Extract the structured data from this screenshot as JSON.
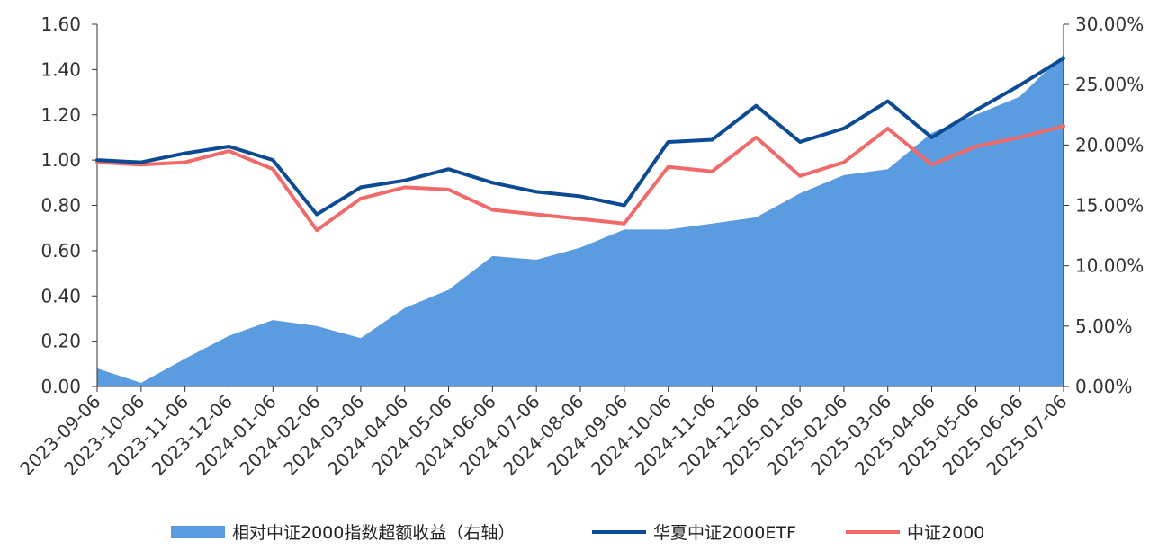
{
  "chart_data": {
    "type": "line",
    "title": "",
    "left_axis": {
      "ylim": [
        0,
        1.6
      ],
      "ticks": [
        0.0,
        0.2,
        0.4,
        0.6,
        0.8,
        1.0,
        1.2,
        1.4,
        1.6
      ],
      "tick_labels": [
        "0.00",
        "0.20",
        "0.40",
        "0.60",
        "0.80",
        "1.00",
        "1.20",
        "1.40",
        "1.60"
      ]
    },
    "right_axis": {
      "ylim": [
        0,
        30
      ],
      "ticks": [
        0,
        5,
        10,
        15,
        20,
        25,
        30
      ],
      "tick_labels": [
        "0.00%",
        "5.00%",
        "10.00%",
        "15.00%",
        "20.00%",
        "25.00%",
        "30.00%"
      ]
    },
    "x": [
      "2023-09-06",
      "2023-10-06",
      "2023-11-06",
      "2023-12-06",
      "2024-01-06",
      "2024-02-06",
      "2024-03-06",
      "2024-04-06",
      "2024-05-06",
      "2024-06-06",
      "2024-07-06",
      "2024-08-06",
      "2024-09-06",
      "2024-10-06",
      "2024-11-06",
      "2024-12-06",
      "2025-01-06",
      "2025-02-06",
      "2025-03-06",
      "2025-04-06",
      "2025-05-06",
      "2025-06-06",
      "2025-07-06"
    ],
    "x_tick_labels": [
      "2023-09-06",
      "2023-10-06",
      "2023-11-06",
      "2023-12-06",
      "2024-01-06",
      "2024-02-06",
      "2024-03-06",
      "2024-04-06",
      "2024-05-06",
      "2024-06-06",
      "2024-07-06",
      "2024-08-06",
      "2024-09-06",
      "2024-10-06",
      "2024-11-06",
      "2024-12-06",
      "2025-01-06",
      "2025-02-06",
      "2025-03-06",
      "2025-04-06",
      "2025-05-06",
      "2025-06-06",
      "2025-07-06"
    ],
    "series": [
      {
        "name": "相对中证2000指数超额收益（右轴）",
        "type": "area",
        "axis": "right",
        "color": "#5b9be0",
        "values": [
          1.5,
          0.3,
          2.3,
          4.2,
          5.5,
          5.0,
          4.0,
          6.5,
          8.0,
          10.8,
          10.5,
          11.5,
          13.0,
          13.0,
          13.5,
          14.0,
          16.0,
          17.5,
          18.0,
          21.0,
          22.5,
          24.0,
          27.5
        ]
      },
      {
        "name": "华夏中证2000ETF",
        "type": "line",
        "axis": "left",
        "color": "#0d4a94",
        "values": [
          1.0,
          0.99,
          1.03,
          1.06,
          1.0,
          0.76,
          0.88,
          0.91,
          0.96,
          0.9,
          0.86,
          0.84,
          0.8,
          1.08,
          1.09,
          1.24,
          1.08,
          1.14,
          1.26,
          1.1,
          1.22,
          1.33,
          1.45
        ]
      },
      {
        "name": "中证2000",
        "type": "line",
        "axis": "left",
        "color": "#f06a6a",
        "values": [
          0.99,
          0.98,
          0.99,
          1.04,
          0.96,
          0.69,
          0.83,
          0.88,
          0.87,
          0.78,
          0.76,
          0.74,
          0.72,
          0.97,
          0.95,
          1.1,
          0.93,
          0.99,
          1.14,
          0.98,
          1.06,
          1.1,
          1.15
        ]
      }
    ],
    "legend_position": "bottom",
    "grid": false
  }
}
